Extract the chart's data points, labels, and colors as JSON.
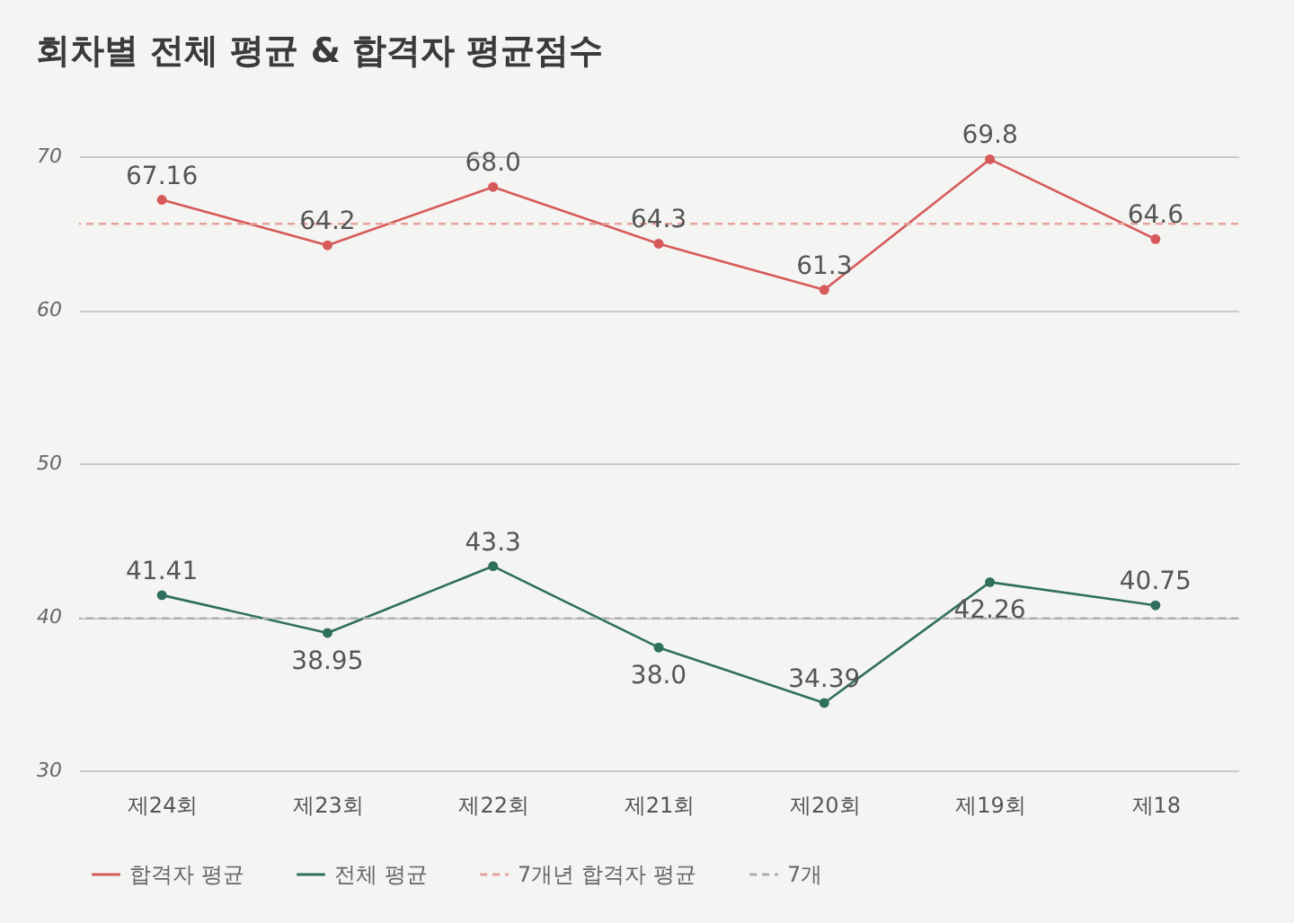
{
  "chart_data": {
    "type": "line",
    "title": "회차별 전체 평균 & 합격자 평균점수",
    "categories": [
      "제24회",
      "제23회",
      "제22회",
      "제21회",
      "제20회",
      "제19회",
      "제18"
    ],
    "series": [
      {
        "name": "합격자 평균",
        "color": "#d65a5a",
        "values": [
          67.16,
          64.2,
          68.0,
          64.3,
          61.3,
          69.8,
          64.6
        ],
        "value_labels": [
          "67.16",
          "64.2",
          "68.0",
          "64.3",
          "61.3",
          "69.8",
          "64.6"
        ]
      },
      {
        "name": "전체 평균",
        "color": "#2f6f5e",
        "values": [
          41.41,
          38.95,
          43.3,
          38.0,
          34.39,
          42.26,
          40.75
        ],
        "value_labels": [
          "41.41",
          "38.95",
          "43.3",
          "38.0",
          "34.39",
          "42.26",
          "40.75"
        ]
      }
    ],
    "ylim": [
      30,
      70
    ],
    "yticks": [
      30,
      40,
      50,
      60,
      70
    ],
    "grid": "y",
    "legend": "bottom",
    "marker": "circle",
    "line_style": "solid",
    "ref_lines": [
      {
        "axis": "y",
        "value": 65.6,
        "label": "7개년 합격자 평균",
        "color": "#e6a39c",
        "line_style": "dashed"
      },
      {
        "axis": "y",
        "value": 39.9,
        "label": "7개",
        "color": "#a9aeab",
        "line_style": "dashed"
      }
    ]
  }
}
